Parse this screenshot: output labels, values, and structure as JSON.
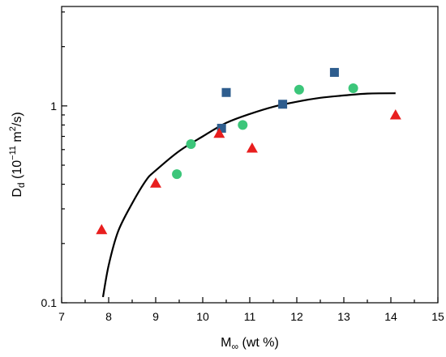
{
  "chart_data": {
    "type": "scatter",
    "x_axis": {
      "label_main": "M",
      "label_sub": "∞",
      "label_rest": " (wt %)",
      "range": [
        7,
        15
      ],
      "ticks": [
        "7",
        "8",
        "9",
        "10",
        "11",
        "12",
        "13",
        "14",
        "15"
      ]
    },
    "y_axis": {
      "label_main": "D",
      "label_sub": "d",
      "label_rest_a": " (10",
      "label_exp": "−11",
      "label_rest_b": " m",
      "label_exp2": "2",
      "label_rest_c": "/s)",
      "scale": "log",
      "range": [
        0.1,
        3.2
      ],
      "ticks": [
        "0.1",
        "1"
      ]
    },
    "grid": false,
    "series": [
      {
        "marker": "square",
        "color": "#2e5d8e",
        "points": [
          [
            10.5,
            1.17
          ],
          [
            10.4,
            0.77
          ],
          [
            11.7,
            1.02
          ],
          [
            12.8,
            1.48
          ]
        ]
      },
      {
        "marker": "circle",
        "color": "#3cc67a",
        "points": [
          [
            9.45,
            0.45
          ],
          [
            9.75,
            0.64
          ],
          [
            10.85,
            0.8
          ],
          [
            12.05,
            1.21
          ],
          [
            13.2,
            1.23
          ]
        ]
      },
      {
        "marker": "triangle",
        "color": "#e81e1e",
        "points": [
          [
            7.85,
            0.235
          ],
          [
            9.0,
            0.405
          ],
          [
            10.35,
            0.725
          ],
          [
            11.05,
            0.61
          ],
          [
            14.1,
            0.9
          ]
        ]
      }
    ],
    "fit_curve": {
      "color": "#000000",
      "points": [
        [
          7.88,
          0.107
        ],
        [
          8.0,
          0.155
        ],
        [
          8.2,
          0.23
        ],
        [
          8.5,
          0.32
        ],
        [
          8.8,
          0.42
        ],
        [
          9.0,
          0.47
        ],
        [
          9.5,
          0.59
        ],
        [
          10.0,
          0.7
        ],
        [
          10.5,
          0.82
        ],
        [
          11.0,
          0.91
        ],
        [
          11.5,
          0.99
        ],
        [
          12.0,
          1.05
        ],
        [
          12.5,
          1.1
        ],
        [
          13.0,
          1.13
        ],
        [
          13.5,
          1.155
        ],
        [
          14.1,
          1.16
        ]
      ]
    }
  }
}
